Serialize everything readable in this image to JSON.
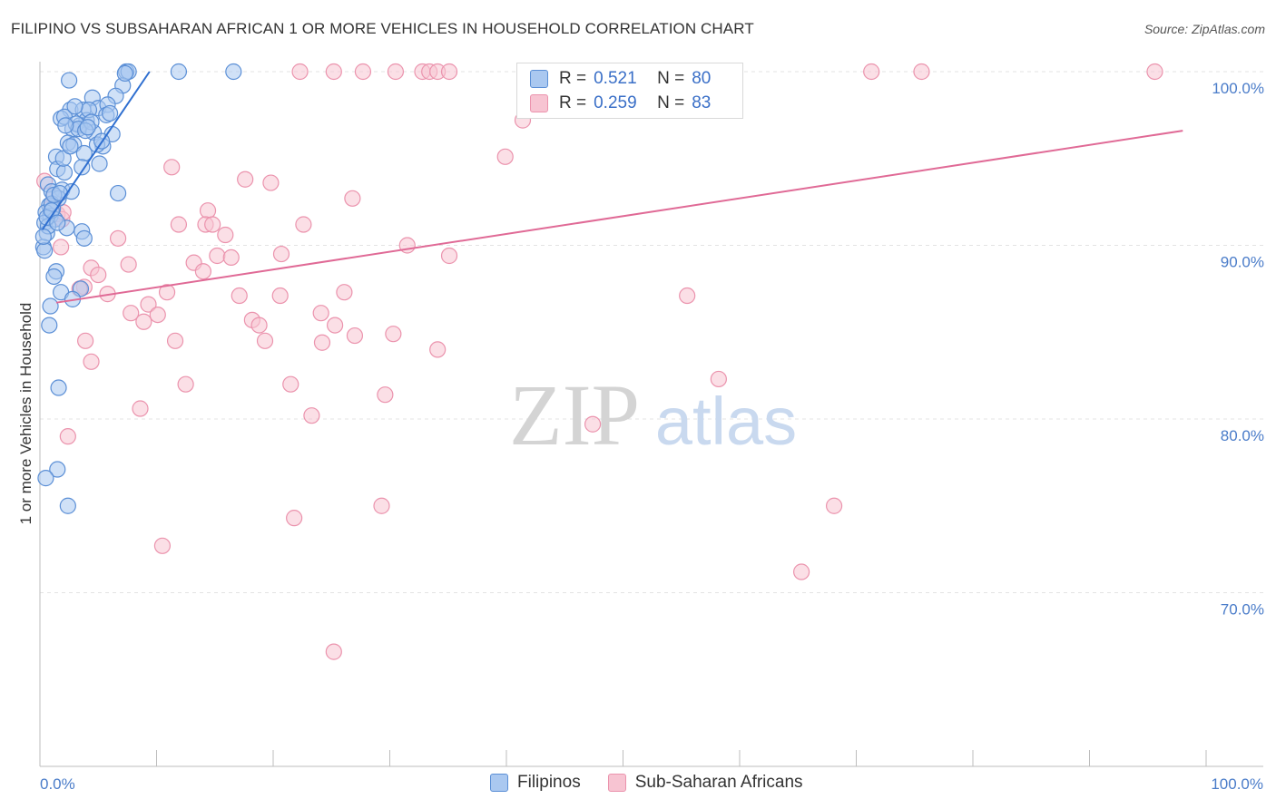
{
  "title": "FILIPINO VS SUBSAHARAN AFRICAN 1 OR MORE VEHICLES IN HOUSEHOLD CORRELATION CHART",
  "source": "Source: ZipAtlas.com",
  "watermark": {
    "zip": "ZIP",
    "atlas": "atlas"
  },
  "legend": [
    {
      "r_label": "R =",
      "r_value": "0.521",
      "n_label": "N =",
      "n_value": "80"
    },
    {
      "r_label": "R =",
      "r_value": "0.259",
      "n_label": "N =",
      "n_value": "83"
    }
  ],
  "bottom_legend": [
    "Filipinos",
    "Sub-Saharan Africans"
  ],
  "colors": {
    "blue_fill": "#aac8f0",
    "blue_stroke": "#5b8fd6",
    "blue_line": "#2f6fd0",
    "pink_fill": "#f7c4d2",
    "pink_stroke": "#eb93ad",
    "pink_line": "#e06a96",
    "grid": "#e3e3e3",
    "tick_text": "#4a7cc9"
  },
  "chart_data": {
    "type": "scatter",
    "title": "FILIPINO VS SUBSAHARAN AFRICAN 1 OR MORE VEHICLES IN HOUSEHOLD CORRELATION CHART",
    "xlabel": "",
    "ylabel": "1 or more Vehicles in Household",
    "xlim": [
      0,
      100
    ],
    "ylim": [
      60,
      100
    ],
    "x_tick_labels": [
      {
        "x": 0,
        "label": "0.0%"
      },
      {
        "x": 100,
        "label": "100.0%"
      }
    ],
    "y_tick_labels": [
      {
        "y": 100,
        "label": "100.0%"
      },
      {
        "y": 90,
        "label": "90.0%"
      },
      {
        "y": 80,
        "label": "80.0%"
      },
      {
        "y": 70,
        "label": "70.0%"
      }
    ],
    "series": [
      {
        "name": "Filipinos",
        "r": 0.521,
        "n": 80,
        "trend": {
          "x": [
            0.2,
            9.4
          ],
          "y": [
            90.9,
            100.0
          ]
        },
        "points": [
          [
            2.5,
            99.5
          ],
          [
            7.4,
            100
          ],
          [
            7.6,
            100
          ],
          [
            11.9,
            100
          ],
          [
            16.6,
            100
          ],
          [
            7.1,
            99.2
          ],
          [
            6.5,
            98.6
          ],
          [
            4.5,
            98.5
          ],
          [
            5.0,
            97.9
          ],
          [
            2.6,
            97.8
          ],
          [
            5.8,
            98.1
          ],
          [
            3.7,
            97.8
          ],
          [
            4.0,
            97.2
          ],
          [
            1.8,
            97.3
          ],
          [
            2.1,
            97.4
          ],
          [
            5.7,
            97.5
          ],
          [
            3.4,
            96.9
          ],
          [
            2.8,
            96.7
          ],
          [
            3.1,
            97.0
          ],
          [
            4.6,
            96.5
          ],
          [
            3.3,
            96.7
          ],
          [
            2.4,
            95.9
          ],
          [
            2.9,
            95.8
          ],
          [
            5.4,
            95.7
          ],
          [
            4.9,
            95.8
          ],
          [
            3.8,
            95.3
          ],
          [
            1.4,
            95.1
          ],
          [
            5.1,
            94.7
          ],
          [
            1.5,
            94.4
          ],
          [
            3.6,
            94.5
          ],
          [
            2.1,
            94.2
          ],
          [
            0.7,
            93.5
          ],
          [
            1.0,
            93.1
          ],
          [
            1.9,
            93.2
          ],
          [
            2.7,
            93.1
          ],
          [
            6.7,
            93.0
          ],
          [
            1.6,
            92.7
          ],
          [
            0.8,
            92.3
          ],
          [
            1.1,
            92.1
          ],
          [
            0.5,
            91.9
          ],
          [
            0.9,
            91.7
          ],
          [
            1.3,
            91.5
          ],
          [
            0.4,
            91.3
          ],
          [
            2.3,
            91.0
          ],
          [
            3.6,
            90.8
          ],
          [
            0.6,
            90.7
          ],
          [
            3.8,
            90.4
          ],
          [
            0.3,
            89.9
          ],
          [
            1.4,
            88.5
          ],
          [
            1.2,
            88.2
          ],
          [
            1.8,
            87.3
          ],
          [
            3.5,
            87.5
          ],
          [
            2.8,
            86.9
          ],
          [
            0.9,
            86.5
          ],
          [
            0.8,
            85.4
          ],
          [
            1.6,
            81.8
          ],
          [
            1.5,
            77.1
          ],
          [
            0.5,
            76.6
          ],
          [
            2.4,
            75.0
          ],
          [
            0.4,
            89.7
          ],
          [
            1.0,
            92.4
          ],
          [
            0.7,
            91.1
          ],
          [
            2.2,
            96.9
          ],
          [
            4.2,
            97.8
          ],
          [
            3.0,
            98.0
          ],
          [
            6.2,
            96.4
          ],
          [
            5.3,
            96.0
          ],
          [
            2.0,
            95.0
          ],
          [
            1.2,
            92.9
          ],
          [
            0.6,
            91.6
          ],
          [
            1.7,
            93.0
          ],
          [
            4.4,
            97.1
          ],
          [
            3.9,
            96.6
          ],
          [
            2.6,
            95.7
          ],
          [
            1.0,
            92.0
          ],
          [
            0.3,
            90.5
          ],
          [
            1.5,
            91.3
          ],
          [
            6.0,
            97.6
          ],
          [
            7.3,
            99.9
          ],
          [
            4.1,
            96.8
          ]
        ]
      },
      {
        "name": "Sub-Saharan Africans",
        "r": 0.259,
        "n": 83,
        "trend": {
          "x": [
            1.4,
            98.0
          ],
          "y": [
            86.7,
            96.6
          ]
        },
        "points": [
          [
            22.3,
            100
          ],
          [
            25.2,
            100
          ],
          [
            27.7,
            100
          ],
          [
            30.5,
            100
          ],
          [
            32.8,
            100
          ],
          [
            33.4,
            100
          ],
          [
            34.1,
            100
          ],
          [
            35.1,
            100
          ],
          [
            47.4,
            100
          ],
          [
            49.0,
            100
          ],
          [
            58.2,
            100
          ],
          [
            58.7,
            100
          ],
          [
            71.3,
            100
          ],
          [
            75.6,
            100
          ],
          [
            95.6,
            100
          ],
          [
            41.4,
            97.2
          ],
          [
            39.9,
            95.1
          ],
          [
            11.3,
            94.5
          ],
          [
            17.6,
            93.8
          ],
          [
            19.8,
            93.6
          ],
          [
            0.4,
            93.7
          ],
          [
            26.8,
            92.7
          ],
          [
            1.2,
            92.8
          ],
          [
            14.4,
            92.0
          ],
          [
            1.5,
            91.8
          ],
          [
            1.0,
            92.2
          ],
          [
            1.9,
            91.5
          ],
          [
            11.9,
            91.2
          ],
          [
            14.2,
            91.2
          ],
          [
            14.8,
            91.2
          ],
          [
            22.6,
            91.2
          ],
          [
            15.9,
            90.6
          ],
          [
            6.7,
            90.4
          ],
          [
            31.5,
            90.0
          ],
          [
            1.8,
            89.9
          ],
          [
            20.7,
            89.5
          ],
          [
            35.1,
            89.4
          ],
          [
            15.2,
            89.4
          ],
          [
            16.4,
            89.3
          ],
          [
            7.6,
            88.9
          ],
          [
            13.2,
            89.0
          ],
          [
            4.4,
            88.7
          ],
          [
            5.0,
            88.3
          ],
          [
            14.0,
            88.5
          ],
          [
            3.8,
            87.6
          ],
          [
            3.4,
            87.5
          ],
          [
            5.8,
            87.2
          ],
          [
            10.9,
            87.3
          ],
          [
            17.1,
            87.1
          ],
          [
            20.6,
            87.1
          ],
          [
            26.1,
            87.3
          ],
          [
            55.5,
            87.1
          ],
          [
            9.3,
            86.6
          ],
          [
            7.8,
            86.1
          ],
          [
            10.1,
            86.0
          ],
          [
            24.1,
            86.1
          ],
          [
            18.2,
            85.7
          ],
          [
            18.8,
            85.4
          ],
          [
            8.9,
            85.6
          ],
          [
            25.3,
            85.4
          ],
          [
            27.0,
            84.8
          ],
          [
            30.3,
            84.9
          ],
          [
            3.9,
            84.5
          ],
          [
            11.6,
            84.5
          ],
          [
            19.3,
            84.5
          ],
          [
            24.2,
            84.4
          ],
          [
            34.1,
            84.0
          ],
          [
            4.4,
            83.3
          ],
          [
            12.5,
            82.0
          ],
          [
            21.5,
            82.0
          ],
          [
            29.6,
            81.4
          ],
          [
            58.2,
            82.3
          ],
          [
            8.6,
            80.6
          ],
          [
            23.3,
            80.2
          ],
          [
            47.4,
            79.7
          ],
          [
            2.4,
            79.0
          ],
          [
            29.3,
            75.0
          ],
          [
            68.1,
            75.0
          ],
          [
            21.8,
            74.3
          ],
          [
            10.5,
            72.7
          ],
          [
            65.3,
            71.2
          ],
          [
            25.2,
            66.6
          ],
          [
            2.0,
            91.9
          ]
        ]
      }
    ]
  }
}
